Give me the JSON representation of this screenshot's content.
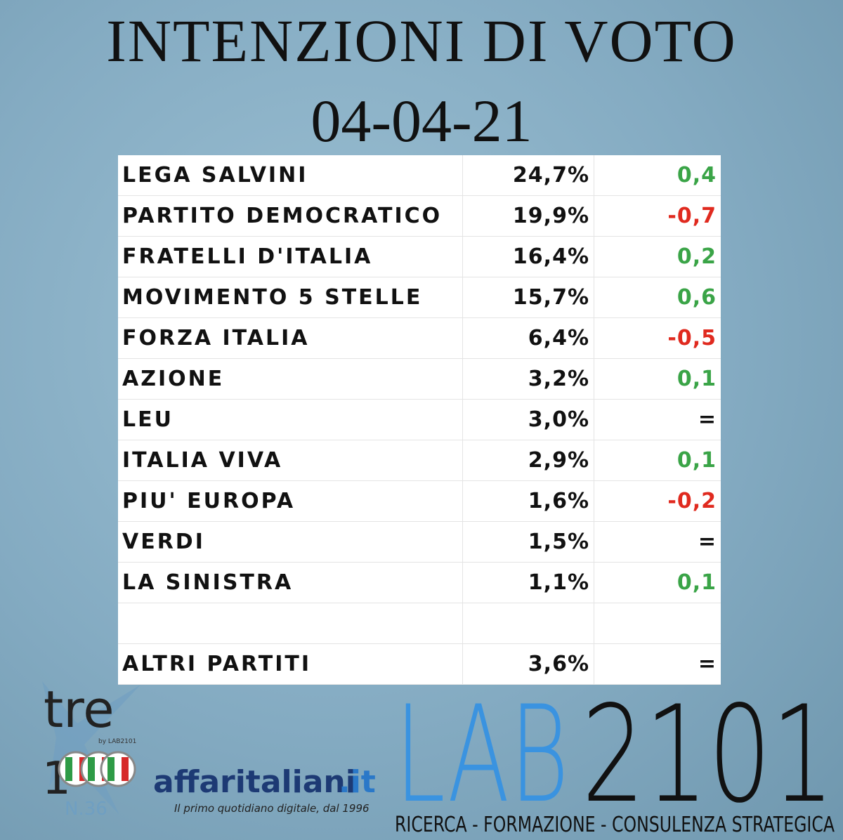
{
  "header": {
    "title": "INTENZIONI DI VOTO",
    "date": "04-04-21"
  },
  "table": {
    "rows": [
      [
        "LEGA SALVINI",
        "24,7%",
        "0,4"
      ],
      [
        "PARTITO DEMOCRATICO",
        "19,9%",
        "-0,7"
      ],
      [
        "FRATELLI D'ITALIA",
        "16,4%",
        "0,2"
      ],
      [
        "MOVIMENTO 5 STELLE",
        "15,7%",
        "0,6"
      ],
      [
        "FORZA ITALIA",
        "6,4%",
        "-0,5"
      ],
      [
        "AZIONE",
        "3,2%",
        "0,1"
      ],
      [
        "LEU",
        "3,0%",
        "="
      ],
      [
        "ITALIA VIVA",
        "2,9%",
        "0,1"
      ],
      [
        "PIU' EUROPA",
        "1,6%",
        "-0,2"
      ],
      [
        "VERDI",
        "1,5%",
        "="
      ],
      [
        "LA SINISTRA",
        "1,1%",
        "0,1"
      ]
    ],
    "footer": [
      "ALTRI PARTITI",
      "3,6%",
      "="
    ]
  },
  "logos": {
    "tre": "tre",
    "tre_number": "1",
    "tre_by": "by LAB2101",
    "tre_issue": "N.36",
    "affari_name": "affaritaliani",
    "affari_domain": ".it",
    "affari_tagline": "Il primo quotidiano digitale, dal 1996",
    "lab_letters": "LAB",
    "lab_digits": "2101",
    "lab_tagline": "RICERCA - FORMAZIONE - CONSULENZA STRATEGICA"
  }
}
